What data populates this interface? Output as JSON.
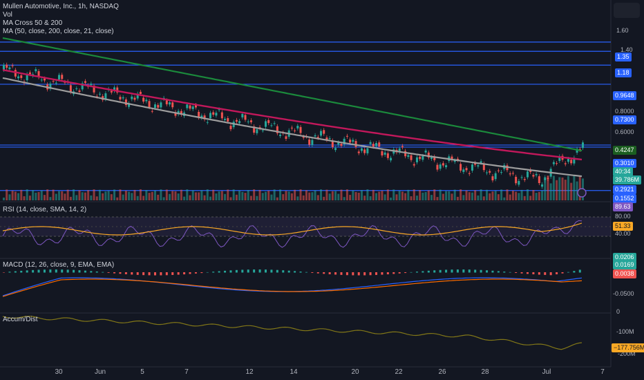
{
  "header": {
    "symbol_line": "Mullen Automotive, Inc., 1h, NASDAQ",
    "indicators": [
      "Vol",
      "MA Cross 50 & 200",
      "MA (50, close, 200, close, 21, close)"
    ]
  },
  "panes": {
    "rsi_label": "RSI (14, close, SMA, 14, 2)",
    "macd_label": "MACD (12, 26, close, 9, EMA, EMA)",
    "accum_label": "Accum/Dist"
  },
  "price_scale": [
    "1.60",
    "1.40",
    "0.8000",
    "0.6000"
  ],
  "price_tags": [
    {
      "text": "1.35",
      "color": "#2962ff"
    },
    {
      "text": "1.18",
      "color": "#2962ff"
    },
    {
      "text": "0.9648",
      "color": "#2962ff"
    },
    {
      "text": "0.7300",
      "color": "#2962ff"
    },
    {
      "text": "0.4247",
      "color": "#1b5e20"
    },
    {
      "text": "0.3010",
      "color": "#2962ff"
    },
    {
      "text": "40:34",
      "color": "#26a69a"
    },
    {
      "text": "39.786M",
      "color": "#26a69a"
    },
    {
      "text": "0.2921",
      "color": "#2962ff"
    },
    {
      "text": "0.1552",
      "color": "#2962ff"
    }
  ],
  "rsi_scale": [
    "80.00",
    "40.00"
  ],
  "rsi_tags": [
    {
      "text": "89.63",
      "color": "#7e57c2"
    },
    {
      "text": "51.33",
      "color": "#f9a825"
    }
  ],
  "macd_scale": [
    "-0.0500",
    "0"
  ],
  "macd_tags": [
    {
      "text": "0.0206",
      "color": "#26a69a"
    },
    {
      "text": "0.0169",
      "color": "#26a69a"
    },
    {
      "text": "0.0038",
      "color": "#ef5350"
    }
  ],
  "accum_scale": [
    "-100M",
    "-200M"
  ],
  "accum_tags": [
    {
      "text": "−177.756M",
      "color": "#f9a825"
    }
  ],
  "x_axis": [
    "30",
    "Jun",
    "5",
    "7",
    "12",
    "14",
    "20",
    "22",
    "26",
    "28",
    "Jul",
    "7"
  ],
  "colors": {
    "up": "#26a69a",
    "down": "#ef5350",
    "ma_long": "#1b8a3c",
    "ma_mid": "#c2185b",
    "ma_short": "#9e9e9e",
    "hline": "#2962ff",
    "rsi": "#7e57c2",
    "rsi_ma": "#f9a825",
    "macd": "#2962ff",
    "signal": "#ff6d00",
    "accum": "#827717"
  },
  "chart_data": {
    "type": "line",
    "title": "Mullen Automotive, Inc., 1h, NASDAQ",
    "horizontal_levels": [
      1.35,
      1.18,
      0.9648,
      0.73,
      0.301,
      0.2921,
      0.1552
    ],
    "last_price": 0.301,
    "ma_200_last": 0.4247,
    "volume_last": "39.786M",
    "rsi_last": 89.63,
    "rsi_ma_last": 51.33,
    "macd_hist_last": 0.0206,
    "macd_last": 0.0169,
    "signal_last": 0.0038,
    "accum_dist_last": "−177.756M"
  }
}
